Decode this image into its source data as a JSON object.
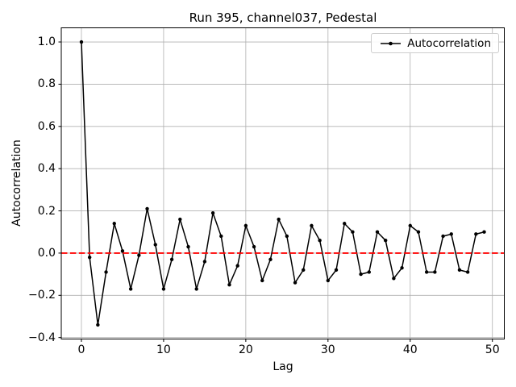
{
  "window": {
    "title": "Run 395, channel037, Pedestal"
  },
  "colors": {
    "background": "#ffffff",
    "series": "#000000",
    "zero_line": "#ff0000",
    "grid": "#b0b0b0",
    "spine": "#000000",
    "legend_border": "#cccccc"
  },
  "chart_data": {
    "type": "line",
    "title": "Run 395, channel037, Pedestal",
    "xlabel": "Lag",
    "ylabel": "Autocorrelation",
    "grid": true,
    "legend_position": "upper right",
    "xlim": [
      -2.45,
      51.45
    ],
    "ylim": [
      -0.407,
      1.067
    ],
    "xticks": [
      0,
      10,
      20,
      30,
      40,
      50
    ],
    "xticklabels": [
      "0",
      "10",
      "20",
      "30",
      "40",
      "50"
    ],
    "yticks": [
      -0.4,
      -0.2,
      0.0,
      0.2,
      0.4,
      0.6,
      0.8,
      1.0
    ],
    "yticklabels": [
      "−0.4",
      "−0.2",
      "0.0",
      "0.2",
      "0.4",
      "0.6",
      "0.8",
      "1.0"
    ],
    "zero_line": {
      "y": 0.0,
      "color": "#ff0000",
      "style": "dashed"
    },
    "series": [
      {
        "name": "Autocorrelation",
        "color": "#000000",
        "marker": "dot",
        "x": [
          0,
          1,
          2,
          3,
          4,
          5,
          6,
          7,
          8,
          9,
          10,
          11,
          12,
          13,
          14,
          15,
          16,
          17,
          18,
          19,
          20,
          21,
          22,
          23,
          24,
          25,
          26,
          27,
          28,
          29,
          30,
          31,
          32,
          33,
          34,
          35,
          36,
          37,
          38,
          39,
          40,
          41,
          42,
          43,
          44,
          45,
          46,
          47,
          48,
          49
        ],
        "values": [
          1.0,
          -0.02,
          -0.34,
          -0.09,
          0.14,
          0.01,
          -0.17,
          -0.01,
          0.21,
          0.04,
          -0.17,
          -0.03,
          0.16,
          0.03,
          -0.17,
          -0.04,
          0.19,
          0.08,
          -0.15,
          -0.06,
          0.13,
          0.03,
          -0.13,
          -0.03,
          0.16,
          0.08,
          -0.14,
          -0.08,
          0.13,
          0.06,
          -0.13,
          -0.08,
          0.14,
          0.1,
          -0.1,
          -0.09,
          0.1,
          0.06,
          -0.12,
          -0.07,
          0.13,
          0.1,
          -0.09,
          -0.09,
          0.08,
          0.09,
          -0.08,
          -0.09,
          0.09,
          0.1
        ]
      }
    ]
  }
}
